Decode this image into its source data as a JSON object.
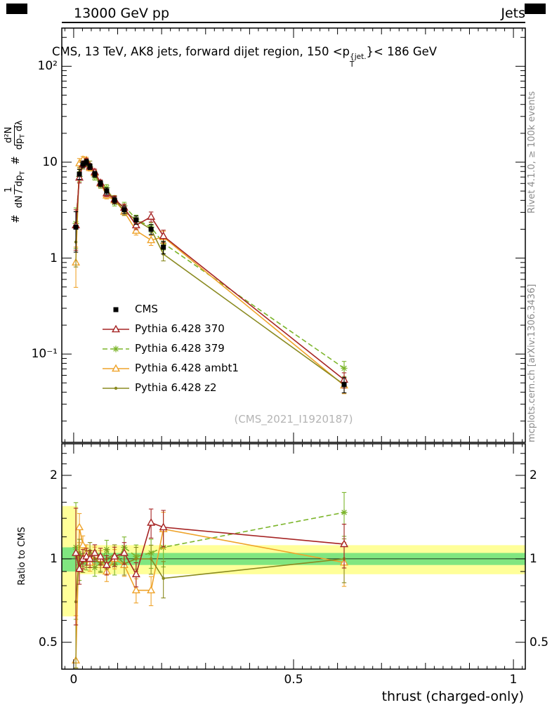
{
  "page": {
    "header_left": "13000 GeV pp",
    "header_right": "Jets",
    "watermark": "(CMS_2021_I1920187)",
    "rivet_credit": "Rivet 4.1.0, ≥ 100k events",
    "mcplots_credit": "mcplots.cern.ch [arXiv:1306.3436]"
  },
  "title": {
    "pre": "CMS, 13 TeV, AK8 jets, forward dijet region, 150 <p",
    "sup": "{jet.",
    "sub": "T",
    "post": "}< 186 GeV"
  },
  "axes": {
    "x_label": "thrust (charged-only)",
    "ratio_label": "Ratio to CMS",
    "y_label": {
      "hash1": "#",
      "frac1_num": "1",
      "frac1_den_main": "dN / dp",
      "frac1_den_sub": "T",
      "hash2": "#",
      "frac2_num": "d²N",
      "frac2_den_main": "dp",
      "frac2_den_sub": "T",
      "frac2_den_tail": " dλ"
    }
  },
  "chart_data": {
    "type": "line",
    "title": "CMS, 13 TeV, AK8 jets, forward dijet region, 150 < pT^jet < 186 GeV",
    "xlabel": "thrust (charged-only)",
    "ylabel_main": "1/(dN/dpT) d2N/(dpT dlambda)",
    "ylabel_ratio": "Ratio to CMS",
    "x": [
      0.005,
      0.013,
      0.021,
      0.029,
      0.037,
      0.048,
      0.061,
      0.075,
      0.093,
      0.115,
      0.142,
      0.176,
      0.204,
      0.615
    ],
    "xlim": [
      -0.027,
      1.027
    ],
    "xticks": [
      {
        "v": 0,
        "label": "0"
      },
      {
        "v": 0.5,
        "label": "0.5"
      },
      {
        "v": 1,
        "label": "1"
      }
    ],
    "err_rel": [
      0.45,
      0.12,
      0.08,
      0.07,
      0.07,
      0.07,
      0.07,
      0.08,
      0.08,
      0.09,
      0.1,
      0.12,
      0.15,
      0.18
    ],
    "main": {
      "scale": "log",
      "ylim": [
        0.012,
        250
      ],
      "yticks": [
        {
          "v": 100,
          "label": "10²"
        },
        {
          "v": 10,
          "label": "10"
        },
        {
          "v": 1,
          "label": "1"
        },
        {
          "v": 0.1,
          "label": "10⁻¹"
        }
      ]
    },
    "ratio": {
      "scale": "log",
      "ylim": [
        0.4,
        2.6
      ],
      "yticks": [
        {
          "v": 2,
          "label": "2"
        },
        {
          "v": 1,
          "label": "1"
        },
        {
          "v": 0.5,
          "label": "0.5"
        }
      ],
      "minor_ticks": [
        0.6,
        0.7,
        0.8,
        0.9,
        1.2,
        1.4,
        1.6,
        1.8,
        2.2,
        2.4
      ]
    },
    "series": [
      {
        "label": "CMS",
        "color": "#000000",
        "marker": "square",
        "line": "none",
        "values": [
          2.1,
          7.5,
          9.5,
          10.0,
          9.0,
          7.5,
          6.0,
          5.0,
          4.0,
          3.2,
          2.5,
          2.0,
          1.3,
          0.048
        ],
        "ratio": [
          1,
          1,
          1,
          1,
          1,
          1,
          1,
          1,
          1,
          1,
          1,
          1,
          1,
          1
        ]
      },
      {
        "label": "Pythia 6.428 370",
        "color": "#a62424",
        "marker": "triangle-open",
        "line": "solid",
        "values": [
          2.2,
          6.9,
          9.5,
          10.2,
          9.0,
          7.9,
          6.1,
          4.75,
          4.1,
          3.35,
          2.2,
          2.7,
          1.7,
          0.054
        ],
        "ratio": [
          1.05,
          0.92,
          1.0,
          1.02,
          1.0,
          1.05,
          1.02,
          0.95,
          1.02,
          1.05,
          0.88,
          1.35,
          1.3,
          1.13
        ]
      },
      {
        "label": "Pythia 6.428 379",
        "color": "#7cb52b",
        "marker": "star",
        "line": "dashed",
        "values": [
          2.3,
          7.1,
          9.7,
          9.8,
          9.0,
          7.0,
          5.8,
          5.4,
          3.8,
          3.5,
          2.55,
          2.1,
          1.43,
          0.071
        ],
        "ratio": [
          1.1,
          0.95,
          1.02,
          0.98,
          1.0,
          0.93,
          0.97,
          1.08,
          0.95,
          1.1,
          1.02,
          1.05,
          1.1,
          1.47
        ]
      },
      {
        "label": "Pythia 6.428 ambt1",
        "color": "#efa32a",
        "marker": "triangle-open",
        "line": "solid",
        "values": [
          0.9,
          9.75,
          10.6,
          10.5,
          8.7,
          7.7,
          6.0,
          4.5,
          4.0,
          3.05,
          1.93,
          1.54,
          1.66,
          0.047
        ],
        "ratio": [
          0.43,
          1.3,
          1.12,
          1.05,
          0.97,
          1.03,
          1.0,
          0.9,
          1.0,
          0.95,
          0.77,
          0.77,
          1.28,
          0.97
        ]
      },
      {
        "label": "Pythia 6.428 z2",
        "color": "#8a8a20",
        "marker": "dot",
        "line": "solid",
        "values": [
          1.47,
          7.9,
          9.2,
          10.0,
          9.6,
          7.5,
          5.76,
          5.0,
          4.16,
          3.07,
          2.5,
          2.0,
          1.1,
          0.048
        ],
        "ratio": [
          0.7,
          1.05,
          0.97,
          1.0,
          1.07,
          1.0,
          0.96,
          1.0,
          1.04,
          0.96,
          1.0,
          1.0,
          0.85,
          1.0
        ]
      }
    ],
    "bands": {
      "yellow": {
        "color": "#ffff99",
        "segments": [
          {
            "x0": -0.027,
            "x1": 1.027,
            "lo": 0.88,
            "hi": 1.12
          },
          {
            "x0": -0.027,
            "x1": 0.009,
            "lo": 0.62,
            "hi": 1.55
          }
        ]
      },
      "green": {
        "color": "#80e680",
        "segments": [
          {
            "x0": -0.027,
            "x1": 1.027,
            "lo": 0.95,
            "hi": 1.05
          },
          {
            "x0": -0.027,
            "x1": 0.009,
            "lo": 0.9,
            "hi": 1.1
          }
        ]
      }
    }
  }
}
